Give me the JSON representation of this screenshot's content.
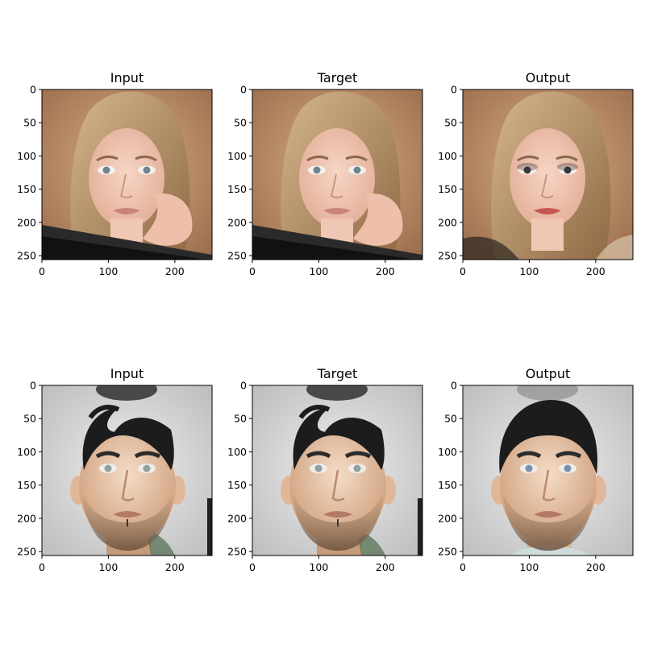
{
  "figure": {
    "panels": [
      {
        "title": "Input",
        "image": "woman-face-photo-input",
        "row": 0,
        "col": 0
      },
      {
        "title": "Target",
        "image": "woman-face-photo-target",
        "row": 0,
        "col": 1
      },
      {
        "title": "Output",
        "image": "woman-face-photo-output",
        "row": 0,
        "col": 2
      },
      {
        "title": "Input",
        "image": "man-face-photo-input",
        "row": 1,
        "col": 0
      },
      {
        "title": "Target",
        "image": "man-face-photo-target",
        "row": 1,
        "col": 1
      },
      {
        "title": "Output",
        "image": "man-face-photo-output",
        "row": 1,
        "col": 2
      }
    ],
    "axes": {
      "xticks": [
        "0",
        "100",
        "200"
      ],
      "xtick_values": [
        0,
        100,
        200
      ],
      "yticks": [
        "0",
        "50",
        "100",
        "150",
        "200",
        "250"
      ],
      "ytick_values": [
        0,
        50,
        100,
        150,
        200,
        250
      ],
      "range": [
        0,
        256
      ]
    },
    "colors": {
      "woman_bg": "#b98c66",
      "woman_skin": "#efc7b4",
      "woman_hair": "#c4a27a",
      "woman_dark": "#2a2a2a",
      "man_bg": "#d8d8d8",
      "man_skin": "#e0b899",
      "man_hair": "#1c1c1c",
      "man_beard": "#8a6e55"
    }
  }
}
